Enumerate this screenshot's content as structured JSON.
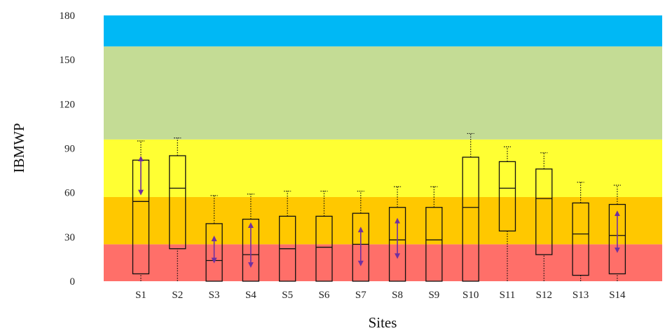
{
  "chart_data": {
    "type": "boxplot",
    "title": "",
    "xlabel": "Sites",
    "ylabel": "IBMWP",
    "ylim": [
      0,
      180
    ],
    "yticks": [
      0,
      30,
      60,
      90,
      120,
      150,
      180
    ],
    "grid": false,
    "legend": "none",
    "bands": [
      {
        "from": 0,
        "to": 25,
        "color": "#ff6f69"
      },
      {
        "from": 25,
        "to": 57,
        "color": "#ffc800"
      },
      {
        "from": 57,
        "to": 96,
        "color": "#ffff33"
      },
      {
        "from": 96,
        "to": 159,
        "color": "#c4dc95"
      },
      {
        "from": 159,
        "to": 180,
        "color": "#00b8f5"
      }
    ],
    "categories": [
      "S1",
      "S2",
      "S3",
      "S4",
      "S5",
      "S6",
      "S7",
      "S8",
      "S9",
      "S10",
      "S11",
      "S12",
      "S13",
      "S14"
    ],
    "boxes": [
      {
        "site": "S1",
        "min": 0,
        "q1": 5,
        "median": 54,
        "q3": 82,
        "max": 95,
        "arrow": [
          60,
          83
        ]
      },
      {
        "site": "S2",
        "min": 0,
        "q1": 22,
        "median": 63,
        "q3": 85,
        "max": 97,
        "arrow": null
      },
      {
        "site": "S3",
        "min": 0,
        "q1": 0,
        "median": 14,
        "q3": 39,
        "max": 58,
        "arrow": [
          14,
          29
        ]
      },
      {
        "site": "S4",
        "min": 0,
        "q1": 0,
        "median": 18,
        "q3": 42,
        "max": 59,
        "arrow": [
          11,
          38
        ]
      },
      {
        "site": "S5",
        "min": 0,
        "q1": 0,
        "median": 22,
        "q3": 44,
        "max": 61,
        "arrow": null
      },
      {
        "site": "S6",
        "min": 0,
        "q1": 0,
        "median": 23,
        "q3": 44,
        "max": 61,
        "arrow": null
      },
      {
        "site": "S7",
        "min": 0,
        "q1": 0,
        "median": 25,
        "q3": 46,
        "max": 61,
        "arrow": [
          12,
          35
        ]
      },
      {
        "site": "S8",
        "min": 0,
        "q1": 0,
        "median": 28,
        "q3": 50,
        "max": 64,
        "arrow": [
          17,
          41
        ]
      },
      {
        "site": "S9",
        "min": 0,
        "q1": 0,
        "median": 28,
        "q3": 50,
        "max": 64,
        "arrow": null
      },
      {
        "site": "S10",
        "min": 0,
        "q1": 0,
        "median": 50,
        "q3": 84,
        "max": 100,
        "arrow": null
      },
      {
        "site": "S11",
        "min": 0,
        "q1": 34,
        "median": 63,
        "q3": 81,
        "max": 91,
        "arrow": null
      },
      {
        "site": "S12",
        "min": 0,
        "q1": 18,
        "median": 56,
        "q3": 76,
        "max": 87,
        "arrow": null
      },
      {
        "site": "S13",
        "min": 0,
        "q1": 4,
        "median": 32,
        "q3": 53,
        "max": 67,
        "arrow": null
      },
      {
        "site": "S14",
        "min": 0,
        "q1": 5,
        "median": 31,
        "q3": 52,
        "max": 65,
        "arrow": [
          21,
          46
        ]
      }
    ],
    "box_stroke": "#111111",
    "arrow_color": "#7030a0"
  }
}
